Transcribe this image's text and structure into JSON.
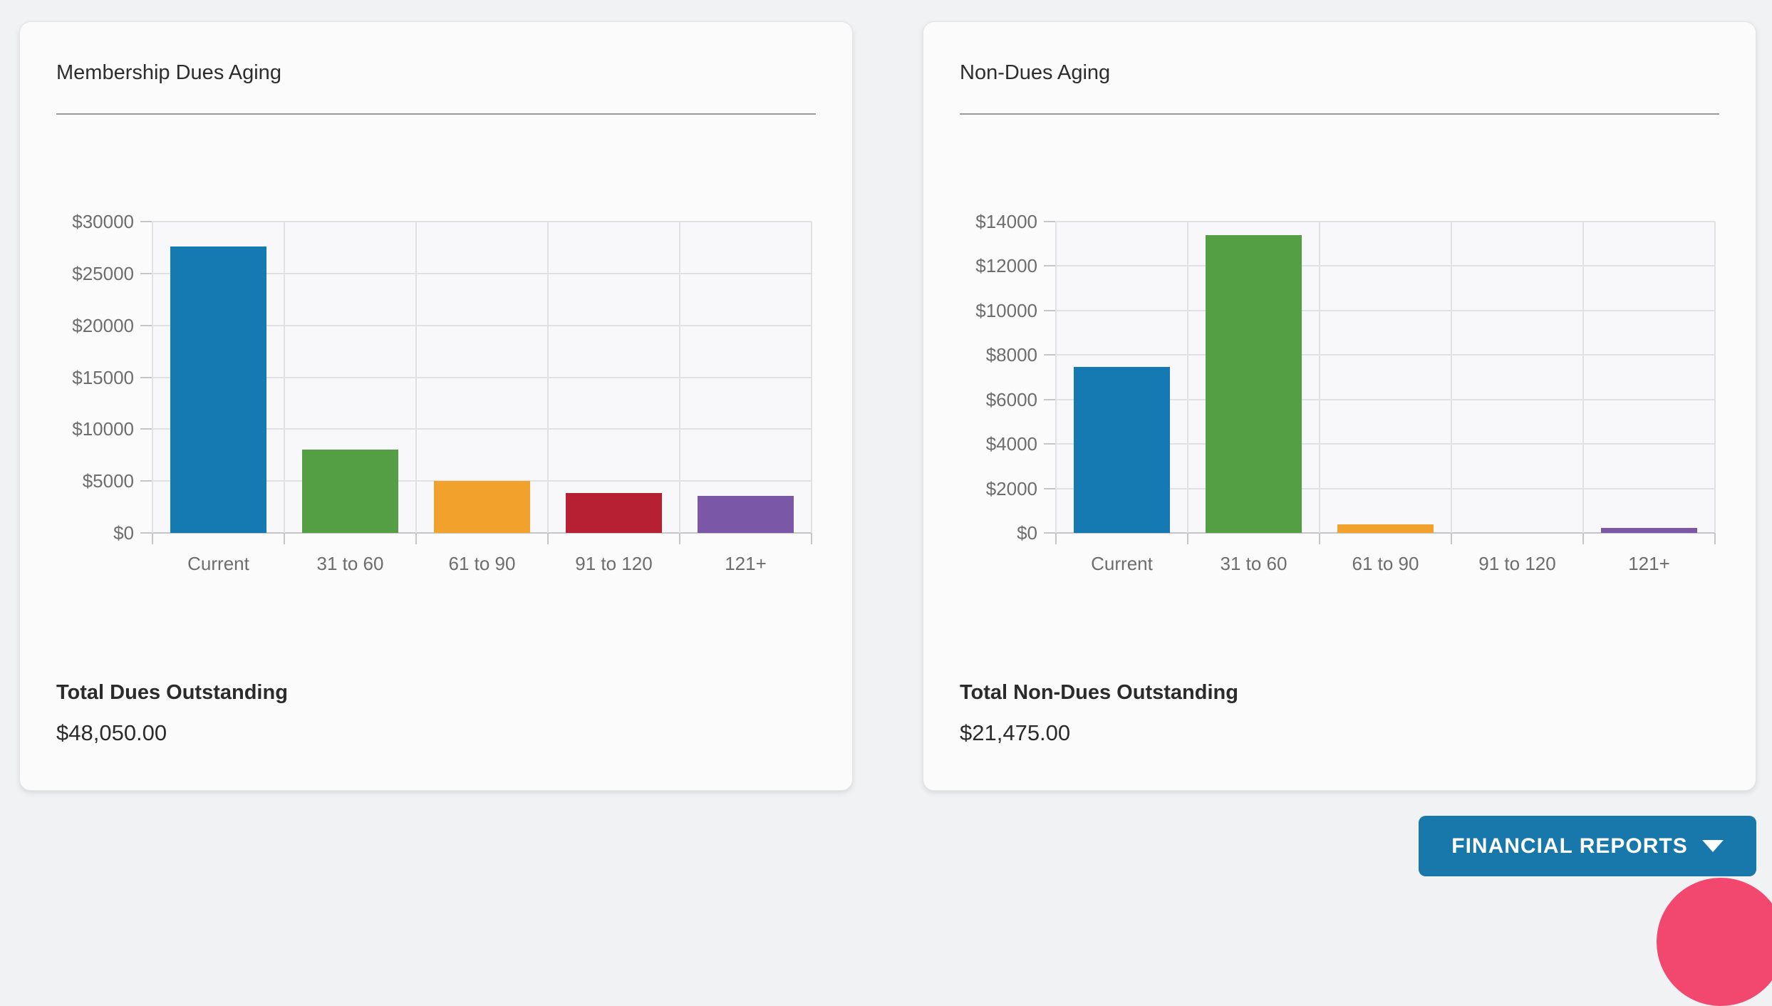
{
  "page": {
    "background": "#f1f2f4"
  },
  "cards": [
    {
      "title": "Membership Dues Aging",
      "total_label": "Total Dues Outstanding",
      "total_value": "$48,050.00"
    },
    {
      "title": "Non-Dues Aging",
      "total_label": "Total Non-Dues Outstanding",
      "total_value": "$21,475.00"
    }
  ],
  "chart_data": [
    {
      "type": "bar",
      "title": "Membership Dues Aging",
      "categories": [
        "Current",
        "31 to 60",
        "61 to 90",
        "91 to 120",
        "121+"
      ],
      "values": [
        27600,
        8000,
        5000,
        3850,
        3600
      ],
      "bar_colors": [
        "#1579B2",
        "#549F44",
        "#F0A22D",
        "#B72032",
        "#7B57A8"
      ],
      "ylim": [
        0,
        30000
      ],
      "ytick_step": 5000,
      "ytick_labels": [
        "$0",
        "$5000",
        "$10000",
        "$15000",
        "$20000",
        "$25000",
        "$30000"
      ],
      "xlabel": "",
      "ylabel": "",
      "grid": true,
      "legend": "none"
    },
    {
      "type": "bar",
      "title": "Non-Dues Aging",
      "categories": [
        "Current",
        "31 to 60",
        "61 to 90",
        "91 to 120",
        "121+"
      ],
      "values": [
        7450,
        13400,
        400,
        0,
        225
      ],
      "bar_colors": [
        "#1579B2",
        "#549F44",
        "#F0A22D",
        "#B72032",
        "#7B57A8"
      ],
      "ylim": [
        0,
        14000
      ],
      "ytick_step": 2000,
      "ytick_labels": [
        "$0",
        "$2000",
        "$4000",
        "$6000",
        "$8000",
        "$10000",
        "$12000",
        "$14000"
      ],
      "xlabel": "",
      "ylabel": "",
      "grid": true,
      "legend": "none"
    }
  ],
  "footer": {
    "reports_button_label": "FINANCIAL REPORTS",
    "caret_icon": "chevron-down",
    "button_color": "#1878AC",
    "pink_color": "#F2486F"
  }
}
